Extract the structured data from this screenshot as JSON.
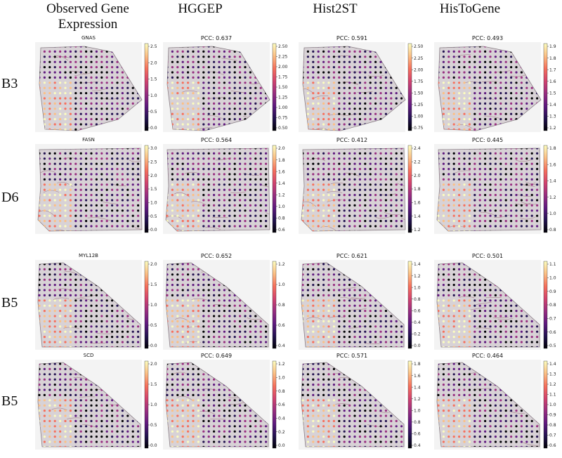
{
  "columns": [
    "Observed Gene\nExpression",
    "HGGEP",
    "Hist2ST",
    "HisToGene"
  ],
  "rows": [
    {
      "label": "B3",
      "shape": "b3",
      "panels": [
        {
          "title": "GNAS",
          "ticks": [
            "2.5",
            "2.0",
            "1.5",
            "1.0",
            "0.5",
            "0.0"
          ]
        },
        {
          "title": "PCC: 0.637",
          "ticks": [
            "2.50",
            "2.25",
            "2.00",
            "1.75",
            "1.50",
            "1.25",
            "1.00",
            "0.75",
            "0.50"
          ]
        },
        {
          "title": "PCC: 0.591",
          "ticks": [
            "2.50",
            "2.25",
            "2.00",
            "1.75",
            "1.50",
            "1.25",
            "1.00",
            "0.75"
          ]
        },
        {
          "title": "PCC: 0.493",
          "ticks": [
            "1.9",
            "1.8",
            "1.7",
            "1.6",
            "1.5",
            "1.4",
            "1.3",
            "1.2"
          ]
        }
      ]
    },
    {
      "label": "D6",
      "shape": "d6",
      "panels": [
        {
          "title": "FASN",
          "ticks": [
            "3.0",
            "2.5",
            "2.0",
            "1.5",
            "1.0",
            "0.5",
            "0.0"
          ]
        },
        {
          "title": "PCC: 0.564",
          "ticks": [
            "2.0",
            "1.8",
            "1.6",
            "1.4",
            "1.2",
            "1.0",
            "0.8",
            "0.6"
          ]
        },
        {
          "title": "PCC: 0.412",
          "ticks": [
            "2.4",
            "2.2",
            "2.0",
            "1.8",
            "1.6",
            "1.4",
            "1.2"
          ]
        },
        {
          "title": "PCC: 0.445",
          "ticks": [
            "1.8",
            "1.6",
            "1.4",
            "1.2",
            "1.0",
            "0.8"
          ]
        }
      ]
    },
    {
      "label": "B5",
      "shape": "b5",
      "panels": [
        {
          "title": "MYL12B",
          "ticks": [
            "2.0",
            "1.5",
            "1.0",
            "0.5",
            "0.0"
          ]
        },
        {
          "title": "PCC: 0.652",
          "ticks": [
            "1.2",
            "1.0",
            "0.8",
            "0.6",
            "0.4"
          ]
        },
        {
          "title": "PCC: 0.621",
          "ticks": [
            "1.4",
            "1.2",
            "1.0",
            "0.8",
            "0.6",
            "0.4",
            "0.2",
            "0.0"
          ]
        },
        {
          "title": "PCC: 0.501",
          "ticks": [
            "1.1",
            "1.0",
            "0.9",
            "0.8",
            "0.7",
            "0.6",
            "0.5"
          ]
        }
      ]
    },
    {
      "label": "B5",
      "shape": "b5",
      "panels": [
        {
          "title": "SCD",
          "ticks": [
            "2.0",
            "1.5",
            "1.0",
            "0.5",
            "0.0"
          ]
        },
        {
          "title": "PCC: 0.649",
          "ticks": [
            "1.2",
            "1.0",
            "0.8",
            "0.6",
            "0.4",
            "0.2",
            "0.0"
          ]
        },
        {
          "title": "PCC: 0.571",
          "ticks": [
            "1.8",
            "1.6",
            "1.4",
            "1.2",
            "1.0",
            "0.8",
            "0.6",
            "0.4"
          ]
        },
        {
          "title": "PCC: 0.464",
          "ticks": [
            "1.4",
            "1.3",
            "1.2",
            "1.1",
            "1.0",
            "0.9",
            "0.8",
            "0.7",
            "0.6"
          ]
        }
      ]
    }
  ],
  "colors": {
    "cmap": [
      "#fcfdbf",
      "#fcbf84",
      "#f7705c",
      "#d3436e",
      "#982d80",
      "#5f187f",
      "#221150",
      "#000004"
    ],
    "tissue": "#d8d2d6",
    "tissue_dark": "#8a7f86",
    "background": "#f3f3f3"
  }
}
